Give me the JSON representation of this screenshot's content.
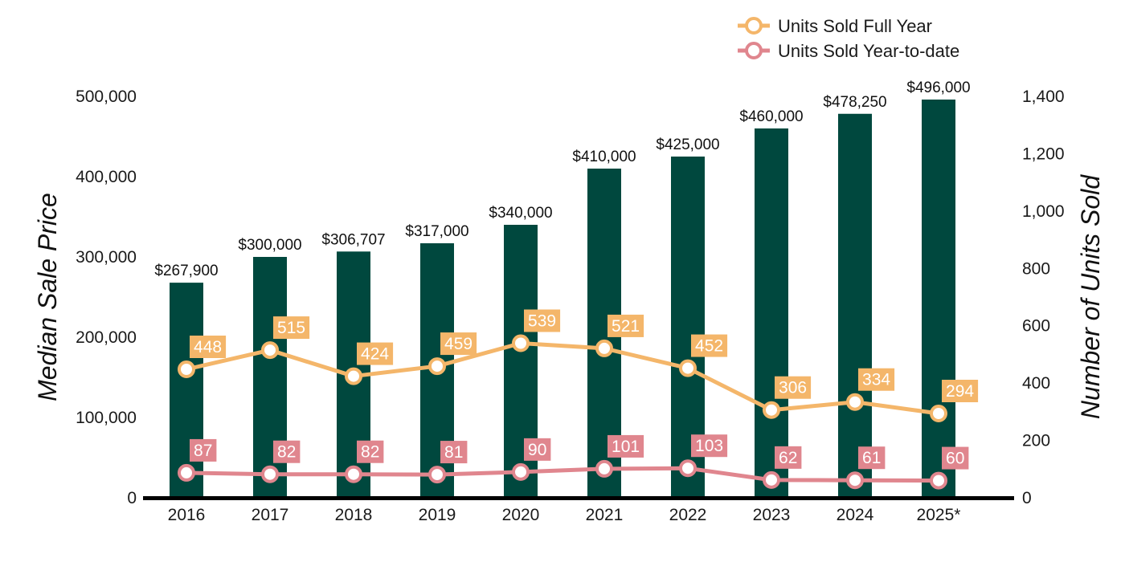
{
  "chart_data": {
    "type": "bar",
    "categories": [
      "2016",
      "2017",
      "2018",
      "2019",
      "2020",
      "2021",
      "2022",
      "2023",
      "2024",
      "2025*"
    ],
    "series": [
      {
        "name": "",
        "kind": "bar",
        "axis": "left",
        "color": "#00483e",
        "values": [
          267900,
          300000,
          306707,
          317000,
          340000,
          410000,
          425000,
          460000,
          478250,
          496000
        ],
        "labels": [
          "$267,900",
          "$300,000",
          "$306,707",
          "$317,000",
          "$340,000",
          "$410,000",
          "$425,000",
          "$460,000",
          "$478,250",
          "$496,000"
        ]
      },
      {
        "name": "Units Sold Full Year",
        "kind": "line",
        "axis": "right",
        "color": "#f4b66a",
        "values": [
          448,
          515,
          424,
          459,
          539,
          521,
          452,
          306,
          334,
          294
        ]
      },
      {
        "name": "Units Sold Year-to-date",
        "kind": "line",
        "axis": "right",
        "color": "#e0868e",
        "values": [
          87,
          82,
          82,
          81,
          90,
          101,
          103,
          62,
          61,
          60
        ]
      }
    ],
    "ylabel": "Median Sale Price",
    "ylim": [
      0,
      500000
    ],
    "yticks": [
      "0",
      "100,000",
      "200,000",
      "300,000",
      "400,000",
      "500,000"
    ],
    "y2label": "Number of Units Sold",
    "y2lim": [
      0,
      1400
    ],
    "y2ticks": [
      "0",
      "200",
      "400",
      "600",
      "800",
      "1,000",
      "1,200",
      "1,400"
    ],
    "grid": false,
    "legend": "top-right"
  }
}
